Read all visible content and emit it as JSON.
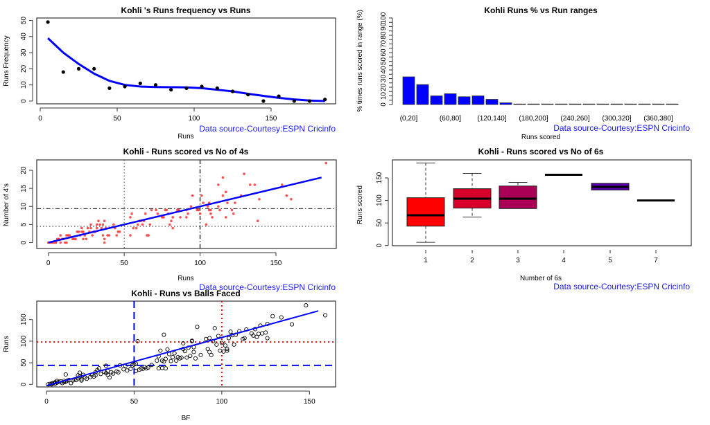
{
  "chart_data": [
    {
      "id": "runs-frequency",
      "type": "scatter",
      "title": "Kohli 's  Runs frequency vs Runs",
      "xlabel": "Runs",
      "ylabel": "Runs Frequency",
      "xlim": [
        0,
        190
      ],
      "ylim": [
        0,
        50
      ],
      "xticks": [
        0,
        50,
        100,
        150
      ],
      "yticks": [
        0,
        10,
        20,
        30,
        40,
        50
      ],
      "x": [
        5,
        15,
        25,
        35,
        45,
        55,
        65,
        75,
        85,
        95,
        105,
        115,
        125,
        135,
        145,
        155,
        165,
        175,
        185
      ],
      "y": [
        49,
        18,
        20,
        20,
        8,
        9,
        11,
        10,
        7,
        8,
        9,
        8,
        6,
        4,
        0,
        3,
        0,
        0,
        1
      ],
      "smooth_line": {
        "x": [
          5,
          15,
          25,
          35,
          45,
          55,
          65,
          75,
          85,
          95,
          105,
          115,
          125,
          135,
          145,
          155,
          165,
          175,
          185
        ],
        "y": [
          39,
          30,
          23,
          17,
          12.5,
          10,
          9,
          8.7,
          8.6,
          8.5,
          8,
          7,
          6,
          4.5,
          3.2,
          2,
          1,
          0.3,
          0
        ],
        "color": "#0000ff"
      },
      "point_color": "#000000",
      "annotation": "Data source-Courtesy:ESPN Cricinfo"
    },
    {
      "id": "runs-pct-ranges",
      "type": "bar",
      "title": "Kohli Runs %  vs Run ranges",
      "xlabel": "Runs scored",
      "ylabel": "% times runs scored in range (%)",
      "ylim": [
        0,
        100
      ],
      "ytick_labels_overlapping": [
        "0",
        "10",
        "20",
        "30",
        "40",
        "50",
        "60",
        "70",
        "80",
        "90",
        "100"
      ],
      "categories": [
        "(0,20]",
        "(20,40]",
        "(40,60]",
        "(60,80]",
        "(80,100]",
        "(100,120]",
        "(120,140]",
        "(140,160]",
        "(160,180]",
        "(180,200]",
        "(200,220]",
        "(220,240]",
        "(240,260]",
        "(260,280]",
        "(280,300]",
        "(300,320]",
        "(320,340]",
        "(340,360]",
        "(360,380]",
        "(380,400]"
      ],
      "visible_category_labels": [
        "(0,20]",
        "(60,80]",
        "(120,140]",
        "(180,200]",
        "(240,260]",
        "(300,320]",
        "(360,380]"
      ],
      "values": [
        32,
        23,
        10,
        12.5,
        9,
        10,
        6,
        2,
        0,
        0.5,
        0,
        0,
        0,
        0,
        0,
        0,
        0,
        0,
        0,
        0
      ],
      "bar_color": "#0000ff",
      "annotation": "Data source-Courtesy:ESPN Cricinfo"
    },
    {
      "id": "runs-vs-4s",
      "type": "scatter",
      "title": "Kohli - Runs scored vs No of 4s",
      "xlabel": "Runs",
      "ylabel": "Number of 4's",
      "xlim": [
        0,
        185
      ],
      "ylim": [
        0,
        22
      ],
      "xticks": [
        0,
        50,
        100,
        150
      ],
      "yticks": [
        0,
        5,
        10,
        15,
        20
      ],
      "point_color": "#ff3333",
      "points": [
        [
          0,
          0
        ],
        [
          1,
          0
        ],
        [
          2,
          0
        ],
        [
          3,
          0
        ],
        [
          4,
          0
        ],
        [
          5,
          0
        ],
        [
          6,
          1
        ],
        [
          7,
          1
        ],
        [
          8,
          0
        ],
        [
          8,
          2
        ],
        [
          9,
          1
        ],
        [
          10,
          1
        ],
        [
          11,
          0
        ],
        [
          12,
          0
        ],
        [
          12,
          2
        ],
        [
          13,
          2
        ],
        [
          14,
          2
        ],
        [
          16,
          1
        ],
        [
          17,
          1
        ],
        [
          18,
          1
        ],
        [
          19,
          3
        ],
        [
          20,
          3
        ],
        [
          21,
          2
        ],
        [
          22,
          3
        ],
        [
          22,
          4
        ],
        [
          23,
          1
        ],
        [
          23,
          3
        ],
        [
          24,
          2
        ],
        [
          25,
          1
        ],
        [
          26,
          4
        ],
        [
          27,
          3
        ],
        [
          28,
          4
        ],
        [
          28,
          5
        ],
        [
          29,
          2
        ],
        [
          30,
          3
        ],
        [
          31,
          3
        ],
        [
          32,
          4
        ],
        [
          32,
          5
        ],
        [
          33,
          6
        ],
        [
          34,
          5
        ],
        [
          35,
          4
        ],
        [
          36,
          5
        ],
        [
          36,
          2
        ],
        [
          37,
          6
        ],
        [
          37,
          1
        ],
        [
          37,
          0
        ],
        [
          38,
          4
        ],
        [
          39,
          2
        ],
        [
          40,
          2
        ],
        [
          43,
          5
        ],
        [
          44,
          4
        ],
        [
          45,
          2
        ],
        [
          46,
          3
        ],
        [
          47,
          3
        ],
        [
          54,
          7
        ],
        [
          54,
          2
        ],
        [
          55,
          8
        ],
        [
          56,
          4
        ],
        [
          58,
          4
        ],
        [
          59,
          5
        ],
        [
          60,
          6
        ],
        [
          61,
          6
        ],
        [
          62,
          5
        ],
        [
          63,
          6
        ],
        [
          64,
          8
        ],
        [
          65,
          2
        ],
        [
          66,
          2
        ],
        [
          67,
          5
        ],
        [
          68,
          9
        ],
        [
          71,
          9
        ],
        [
          72,
          8
        ],
        [
          75,
          7
        ],
        [
          76,
          7
        ],
        [
          77,
          9
        ],
        [
          78,
          9
        ],
        [
          79,
          8
        ],
        [
          80,
          5
        ],
        [
          81,
          6
        ],
        [
          82,
          4
        ],
        [
          82,
          7
        ],
        [
          85,
          9
        ],
        [
          86,
          9
        ],
        [
          87,
          7
        ],
        [
          91,
          7
        ],
        [
          91,
          9
        ],
        [
          92,
          8
        ],
        [
          94,
          10
        ],
        [
          95,
          13
        ],
        [
          98,
          9
        ],
        [
          99,
          9
        ],
        [
          100,
          8
        ],
        [
          101,
          13
        ],
        [
          102,
          11
        ],
        [
          104,
          5
        ],
        [
          105,
          10
        ],
        [
          106,
          11
        ],
        [
          106,
          9
        ],
        [
          107,
          8
        ],
        [
          107,
          9
        ],
        [
          108,
          7
        ],
        [
          112,
          16
        ],
        [
          112,
          10
        ],
        [
          113,
          9
        ],
        [
          115,
          13
        ],
        [
          115,
          18
        ],
        [
          117,
          14
        ],
        [
          117,
          7
        ],
        [
          118,
          11
        ],
        [
          121,
          9
        ],
        [
          122,
          8
        ],
        [
          123,
          11
        ],
        [
          127,
          13
        ],
        [
          129,
          19
        ],
        [
          133,
          16
        ],
        [
          136,
          16
        ],
        [
          138,
          6
        ],
        [
          139,
          12
        ],
        [
          154,
          16
        ],
        [
          157,
          13
        ],
        [
          160,
          12
        ],
        [
          183,
          22
        ]
      ],
      "fit_line": {
        "x": [
          0,
          180
        ],
        "y": [
          0,
          18
        ],
        "color": "#0000ff"
      },
      "hlines": [
        {
          "y": 9.4,
          "style": "dashdot"
        },
        {
          "y": 4.5,
          "style": "dotted"
        }
      ],
      "vlines": [
        {
          "x": 50,
          "style": "dotted"
        },
        {
          "x": 100,
          "style": "dashdot"
        }
      ],
      "annotation": "Data source-Courtesy:ESPN Cricinfo"
    },
    {
      "id": "runs-vs-6s",
      "type": "boxplot",
      "title": "Kohli - Runs scored vs No of 6s",
      "xlabel": "Number of 6s",
      "ylabel": "Runs scored",
      "ylim": [
        0,
        183
      ],
      "yticks": [
        0,
        50,
        100,
        150
      ],
      "categories": [
        "1",
        "2",
        "3",
        "4",
        "5",
        "7"
      ],
      "boxes": [
        {
          "label": "1",
          "min": 7,
          "q1": 43,
          "median": 67,
          "q3": 106,
          "max": 183,
          "color": "#ff0000"
        },
        {
          "label": "2",
          "min": 63,
          "q1": 83,
          "median": 104,
          "q3": 126,
          "max": 160,
          "color": "#d6002b"
        },
        {
          "label": "3",
          "min": 82,
          "q1": 82,
          "median": 104,
          "q3": 132,
          "max": 140,
          "color": "#aa0055"
        },
        {
          "label": "4",
          "min": 157,
          "q1": 157,
          "median": 157,
          "q3": 157,
          "max": 157,
          "color": "#800080"
        },
        {
          "label": "5",
          "min": 123,
          "q1": 123,
          "median": 130,
          "q3": 138,
          "max": 138,
          "color": "#5500aa"
        },
        {
          "label": "7",
          "min": 100,
          "q1": 100,
          "median": 100,
          "q3": 100,
          "max": 100,
          "color": "#2b00d5"
        }
      ],
      "annotation": "Data source-Courtesy:ESPN Cricinfo"
    },
    {
      "id": "runs-vs-bf",
      "type": "scatter",
      "title": "Kohli - Runs vs Balls Faced",
      "xlabel": "BF",
      "ylabel": "Runs",
      "xlim": [
        0,
        160
      ],
      "ylim": [
        0,
        183
      ],
      "xticks": [
        0,
        50,
        100,
        150
      ],
      "yticks": [
        0,
        50,
        100,
        150
      ],
      "point_color": "#000000",
      "points": [
        [
          1,
          0
        ],
        [
          2,
          1
        ],
        [
          3,
          2
        ],
        [
          3,
          0
        ],
        [
          4,
          3
        ],
        [
          5,
          2
        ],
        [
          5,
          5
        ],
        [
          6,
          4
        ],
        [
          6,
          8
        ],
        [
          7,
          6
        ],
        [
          8,
          7
        ],
        [
          9,
          3
        ],
        [
          10,
          5
        ],
        [
          10,
          8
        ],
        [
          11,
          6
        ],
        [
          11,
          23
        ],
        [
          12,
          9
        ],
        [
          13,
          10
        ],
        [
          14,
          3
        ],
        [
          15,
          9
        ],
        [
          16,
          11
        ],
        [
          17,
          10
        ],
        [
          18,
          14
        ],
        [
          18,
          21
        ],
        [
          19,
          18
        ],
        [
          19,
          27
        ],
        [
          20,
          12
        ],
        [
          20,
          9
        ],
        [
          21,
          22
        ],
        [
          22,
          16
        ],
        [
          23,
          13
        ],
        [
          25,
          17
        ],
        [
          26,
          22
        ],
        [
          27,
          18
        ],
        [
          28,
          21
        ],
        [
          28,
          28
        ],
        [
          29,
          33
        ],
        [
          30,
          37
        ],
        [
          31,
          24
        ],
        [
          33,
          29
        ],
        [
          34,
          26
        ],
        [
          34,
          43
        ],
        [
          35,
          31
        ],
        [
          35,
          22
        ],
        [
          36,
          16
        ],
        [
          37,
          28
        ],
        [
          38,
          25
        ],
        [
          40,
          30
        ],
        [
          41,
          28
        ],
        [
          42,
          44
        ],
        [
          44,
          35
        ],
        [
          45,
          43
        ],
        [
          46,
          32
        ],
        [
          48,
          36
        ],
        [
          49,
          44
        ],
        [
          50,
          46
        ],
        [
          51,
          48
        ],
        [
          51,
          31
        ],
        [
          52,
          100
        ],
        [
          53,
          34
        ],
        [
          54,
          37
        ],
        [
          55,
          36
        ],
        [
          56,
          40
        ],
        [
          57,
          37
        ],
        [
          58,
          39
        ],
        [
          60,
          45
        ],
        [
          63,
          55
        ],
        [
          64,
          37
        ],
        [
          64,
          65
        ],
        [
          65,
          78
        ],
        [
          66,
          38
        ],
        [
          66,
          55
        ],
        [
          67,
          115
        ],
        [
          67,
          53
        ],
        [
          68,
          37
        ],
        [
          68,
          59
        ],
        [
          69,
          81
        ],
        [
          70,
          70
        ],
        [
          71,
          54
        ],
        [
          72,
          63
        ],
        [
          73,
          72
        ],
        [
          74,
          55
        ],
        [
          75,
          63
        ],
        [
          76,
          60
        ],
        [
          77,
          62
        ],
        [
          78,
          95
        ],
        [
          78,
          82
        ],
        [
          79,
          77
        ],
        [
          80,
          62
        ],
        [
          81,
          85
        ],
        [
          82,
          66
        ],
        [
          83,
          100
        ],
        [
          83,
          101
        ],
        [
          84,
          75
        ],
        [
          84,
          86
        ],
        [
          85,
          60
        ],
        [
          86,
          133
        ],
        [
          88,
          68
        ],
        [
          91,
          105
        ],
        [
          92,
          82
        ],
        [
          93,
          107
        ],
        [
          93,
          75
        ],
        [
          94,
          68
        ],
        [
          95,
          100
        ],
        [
          96,
          130
        ],
        [
          97,
          92
        ],
        [
          98,
          112
        ],
        [
          99,
          78
        ],
        [
          100,
          96
        ],
        [
          101,
          76
        ],
        [
          102,
          90
        ],
        [
          103,
          78
        ],
        [
          103,
          82
        ],
        [
          104,
          107
        ],
        [
          105,
          122
        ],
        [
          106,
          114
        ],
        [
          107,
          92
        ],
        [
          108,
          115
        ],
        [
          110,
          123
        ],
        [
          112,
          105
        ],
        [
          113,
          107
        ],
        [
          114,
          127
        ],
        [
          117,
          118
        ],
        [
          118,
          113
        ],
        [
          119,
          128
        ],
        [
          120,
          110
        ],
        [
          121,
          117
        ],
        [
          122,
          136
        ],
        [
          123,
          118
        ],
        [
          125,
          120
        ],
        [
          126,
          140
        ],
        [
          126,
          107
        ],
        [
          129,
          158
        ],
        [
          134,
          155
        ],
        [
          140,
          139
        ],
        [
          148,
          183
        ],
        [
          159,
          160
        ]
      ],
      "fit_line": {
        "x": [
          0,
          155
        ],
        "y": [
          -3,
          170
        ],
        "color": "#0000ff"
      },
      "hlines": [
        {
          "y": 98,
          "style": "dotted",
          "color": "#ff0000"
        },
        {
          "y": 44,
          "style": "dashed",
          "color": "#0000ff"
        }
      ],
      "vlines": [
        {
          "x": 50,
          "style": "dashed",
          "color": "#0000ff"
        },
        {
          "x": 100,
          "style": "dotted",
          "color": "#ff0000"
        }
      ]
    }
  ]
}
